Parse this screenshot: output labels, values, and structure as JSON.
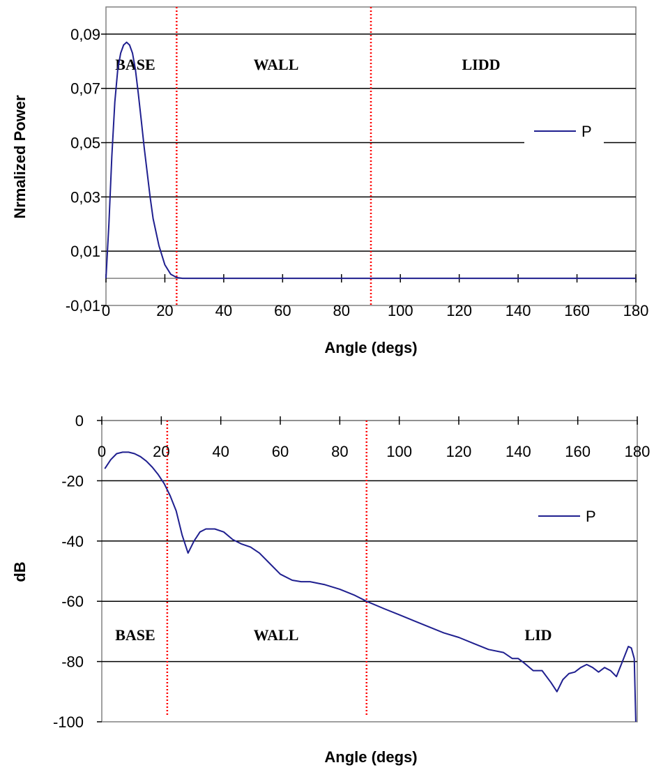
{
  "chart_data": [
    {
      "type": "line",
      "xlabel": "Angle (degs)",
      "ylabel": "Nrmalized Power",
      "xlim": [
        0,
        180
      ],
      "ylim": [
        -0.01,
        0.1
      ],
      "x_ticks": [
        "0",
        "20",
        "40",
        "60",
        "80",
        "100",
        "120",
        "140",
        "160",
        "180"
      ],
      "y_ticks": [
        "0,09",
        "0,07",
        "0,05",
        "0,03",
        "0,01",
        "-0,01"
      ],
      "grid": "horizontal",
      "legend": "right",
      "region_labels": [
        "BASE",
        "WALL",
        "LIDD"
      ],
      "region_boundaries": [
        24,
        90
      ],
      "series": [
        {
          "name": "P",
          "color": "#1f1f8f",
          "x": [
            0,
            1,
            2,
            3,
            4,
            5,
            6,
            7,
            8,
            9,
            10,
            11,
            12,
            13,
            14,
            15,
            16,
            18,
            20,
            22,
            24,
            26,
            40,
            60,
            80,
            100,
            120,
            140,
            160,
            180
          ],
          "y": [
            0,
            0.02,
            0.045,
            0.065,
            0.077,
            0.083,
            0.086,
            0.087,
            0.086,
            0.083,
            0.077,
            0.068,
            0.058,
            0.048,
            0.039,
            0.03,
            0.022,
            0.012,
            0.005,
            0.0015,
            0.0003,
            0,
            0,
            0,
            0,
            0,
            0,
            0,
            0,
            0
          ]
        }
      ]
    },
    {
      "type": "line",
      "xlabel": "Angle (degs)",
      "ylabel": "dB",
      "xlim": [
        0,
        180
      ],
      "ylim": [
        -100,
        0
      ],
      "x_ticks": [
        "0",
        "20",
        "40",
        "60",
        "80",
        "100",
        "120",
        "140",
        "160",
        "180"
      ],
      "y_ticks": [
        "0",
        "-20",
        "-40",
        "-60",
        "-80",
        "-100"
      ],
      "grid": "horizontal",
      "legend": "right",
      "region_labels": [
        "BASE",
        "WALL",
        "LID"
      ],
      "region_boundaries": [
        22,
        89
      ],
      "series": [
        {
          "name": "P",
          "color": "#1f1f8f",
          "x": [
            1,
            3,
            5,
            7,
            9,
            11,
            13,
            15,
            17,
            19,
            21,
            23,
            25,
            27,
            29,
            31,
            33,
            35,
            38,
            41,
            44,
            47,
            50,
            53,
            56,
            60,
            64,
            67,
            70,
            75,
            80,
            85,
            89,
            95,
            100,
            105,
            110,
            115,
            120,
            125,
            130,
            135,
            138,
            140,
            142,
            145,
            148,
            151,
            153,
            155,
            157,
            159,
            161,
            163,
            165,
            167,
            169,
            171,
            173,
            175,
            177,
            178,
            179,
            179.5
          ],
          "y": [
            -16,
            -13,
            -11,
            -10.5,
            -10.5,
            -11,
            -12,
            -13.5,
            -15.5,
            -18,
            -21,
            -25,
            -30,
            -38,
            -44,
            -40,
            -37,
            -36,
            -36,
            -37,
            -39.5,
            -41,
            -42,
            -44,
            -47,
            -51,
            -53,
            -53.5,
            -53.5,
            -54.5,
            -56,
            -58,
            -60,
            -62.5,
            -64.5,
            -66.5,
            -68.5,
            -70.5,
            -72,
            -74,
            -76,
            -77,
            -79,
            -79,
            -80.5,
            -83,
            -83,
            -87,
            -90,
            -86,
            -84,
            -83.5,
            -82,
            -81,
            -82,
            -83.5,
            -82,
            -83,
            -85,
            -80,
            -75,
            -75.5,
            -79,
            -100
          ]
        }
      ]
    }
  ]
}
